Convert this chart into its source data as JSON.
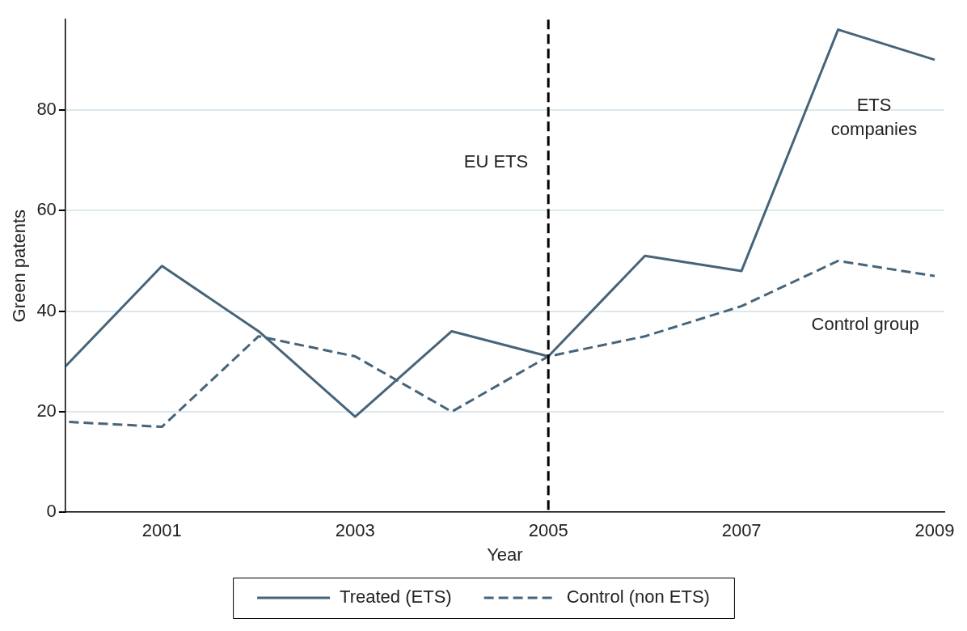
{
  "chart_data": {
    "type": "line",
    "xlabel": "Year",
    "ylabel": "Green patents",
    "x": [
      2000,
      2001,
      2002,
      2003,
      2004,
      2005,
      2006,
      2007,
      2008,
      2009
    ],
    "series": [
      {
        "name": "Treated (ETS)",
        "color": "#46647a",
        "line_style": "solid",
        "values": [
          29,
          49,
          36,
          19,
          36,
          31,
          51,
          48,
          96,
          90
        ]
      },
      {
        "name": "Control (non ETS)",
        "color": "#46647a",
        "line_style": "dashed",
        "values": [
          18,
          17,
          35,
          31,
          20,
          31,
          35,
          41,
          50,
          47
        ]
      }
    ],
    "xlim": [
      2000,
      2009.1
    ],
    "xticks": [
      2001,
      2003,
      2005,
      2007,
      2009
    ],
    "ylim": [
      0,
      98
    ],
    "yticks": [
      0,
      20,
      40,
      60,
      80
    ],
    "grid": "y",
    "legend": "bottom",
    "marker": "none",
    "ref_lines": [
      {
        "axis": "x",
        "value": 2005,
        "label": "EU ETS",
        "color": "#000000",
        "line_style": "dashed"
      }
    ],
    "annotations": [
      "ETS companies",
      "Control group"
    ]
  }
}
